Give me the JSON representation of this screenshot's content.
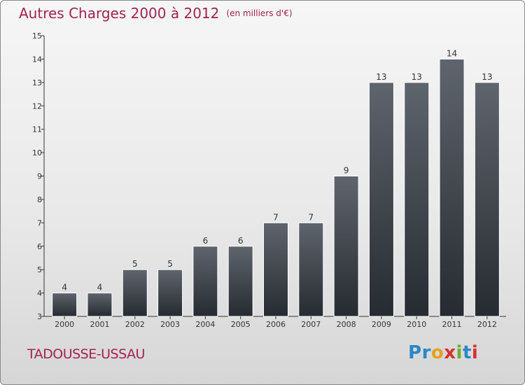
{
  "header": {
    "title": "Autres Charges 2000 à 2012",
    "subtitle": "(en milliers d'€)"
  },
  "footer": {
    "place": "TADOUSSE-USSAU",
    "logo": "Proxiti"
  },
  "colors": {
    "title": "#a32350",
    "bar_top": "#5f656c",
    "bar_bottom": "#262b31",
    "logo": [
      "#2a86c8",
      "#2a86c8",
      "#e8a01c",
      "#d9302f",
      "#6cae2e",
      "#2a86c8",
      "#d9302f"
    ]
  },
  "chart_data": {
    "type": "bar",
    "categories": [
      "2000",
      "2001",
      "2002",
      "2003",
      "2004",
      "2005",
      "2006",
      "2007",
      "2008",
      "2009",
      "2010",
      "2011",
      "2012"
    ],
    "values": [
      4,
      4,
      5,
      5,
      6,
      6,
      7,
      7,
      9,
      13,
      13,
      14,
      13
    ],
    "ylim": [
      3,
      15
    ],
    "yticks": [
      3,
      4,
      5,
      6,
      7,
      8,
      9,
      10,
      11,
      12,
      13,
      14,
      15
    ],
    "grid": false,
    "data_labels": true
  }
}
